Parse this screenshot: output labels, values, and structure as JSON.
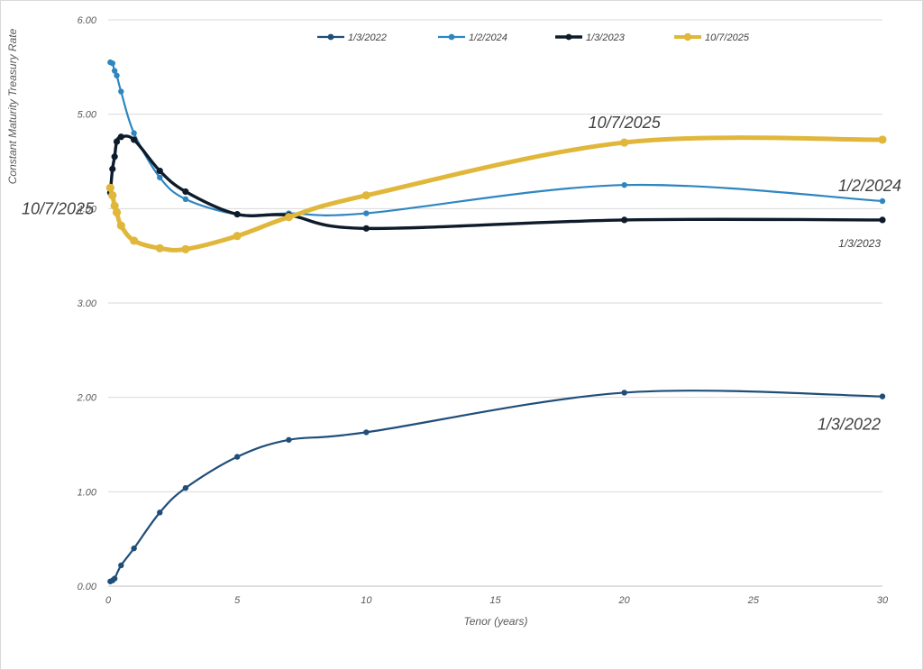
{
  "chart_data": {
    "type": "line",
    "title": "",
    "xlabel": "Tenor (years)",
    "ylabel": "Constant Maturity Treasury Rate",
    "xlim": [
      0,
      30
    ],
    "ylim": [
      0,
      6
    ],
    "x_ticks": [
      0,
      5,
      10,
      15,
      20,
      25,
      30
    ],
    "y_ticks": [
      "0.00",
      "1.00",
      "2.00",
      "3.00",
      "4.00",
      "5.00",
      "6.00"
    ],
    "grid": "horizontal",
    "legend_position": "top",
    "series": [
      {
        "name": "1/3/2022",
        "color": "#1f4e79",
        "width": 2.2,
        "x": [
          0.083,
          0.167,
          0.25,
          0.5,
          1,
          2,
          3,
          5,
          7,
          10,
          20,
          30
        ],
        "y": [
          0.05,
          0.06,
          0.08,
          0.22,
          0.4,
          0.78,
          1.04,
          1.37,
          1.55,
          1.63,
          2.05,
          2.01
        ]
      },
      {
        "name": "1/2/2024",
        "color": "#2e86c1",
        "width": 2.2,
        "x": [
          0.083,
          0.167,
          0.25,
          0.333,
          0.5,
          1,
          2,
          3,
          5,
          7,
          10,
          20,
          30
        ],
        "y": [
          5.55,
          5.54,
          5.46,
          5.41,
          5.24,
          4.8,
          4.33,
          4.1,
          3.94,
          3.95,
          3.95,
          4.25,
          4.08
        ]
      },
      {
        "name": "1/3/2023",
        "color": "#0d1b2a",
        "width": 3.4,
        "x": [
          0.083,
          0.167,
          0.25,
          0.333,
          0.5,
          1,
          2,
          3,
          5,
          7,
          10,
          20,
          30
        ],
        "y": [
          4.17,
          4.42,
          4.55,
          4.71,
          4.76,
          4.73,
          4.4,
          4.18,
          3.94,
          3.93,
          3.79,
          3.88,
          3.88
        ]
      },
      {
        "name": "10/7/2025",
        "color": "#e0b73a",
        "width": 5,
        "x": [
          0.083,
          0.167,
          0.25,
          0.333,
          0.5,
          1,
          2,
          3,
          5,
          7,
          10,
          20,
          30
        ],
        "y": [
          4.22,
          4.14,
          4.03,
          3.96,
          3.82,
          3.66,
          3.58,
          3.57,
          3.71,
          3.91,
          4.14,
          4.7,
          4.73
        ]
      }
    ],
    "annotations": [
      {
        "text": "10/7/2025",
        "x": 20.0,
        "y": 4.7,
        "size": "large",
        "anchor": "above"
      },
      {
        "text": "1/2/2024",
        "x": 30.0,
        "y": 4.08,
        "size": "large",
        "anchor": "above-left"
      },
      {
        "text": "1/3/2023",
        "x": 30.0,
        "y": 3.88,
        "size": "small",
        "anchor": "below-left"
      },
      {
        "text": "1/3/2022",
        "x": 30.0,
        "y": 2.01,
        "size": "large",
        "anchor": "below-left"
      },
      {
        "text": "10/7/2025",
        "x": 0.0,
        "y": 4.0,
        "size": "large",
        "anchor": "left"
      }
    ]
  }
}
